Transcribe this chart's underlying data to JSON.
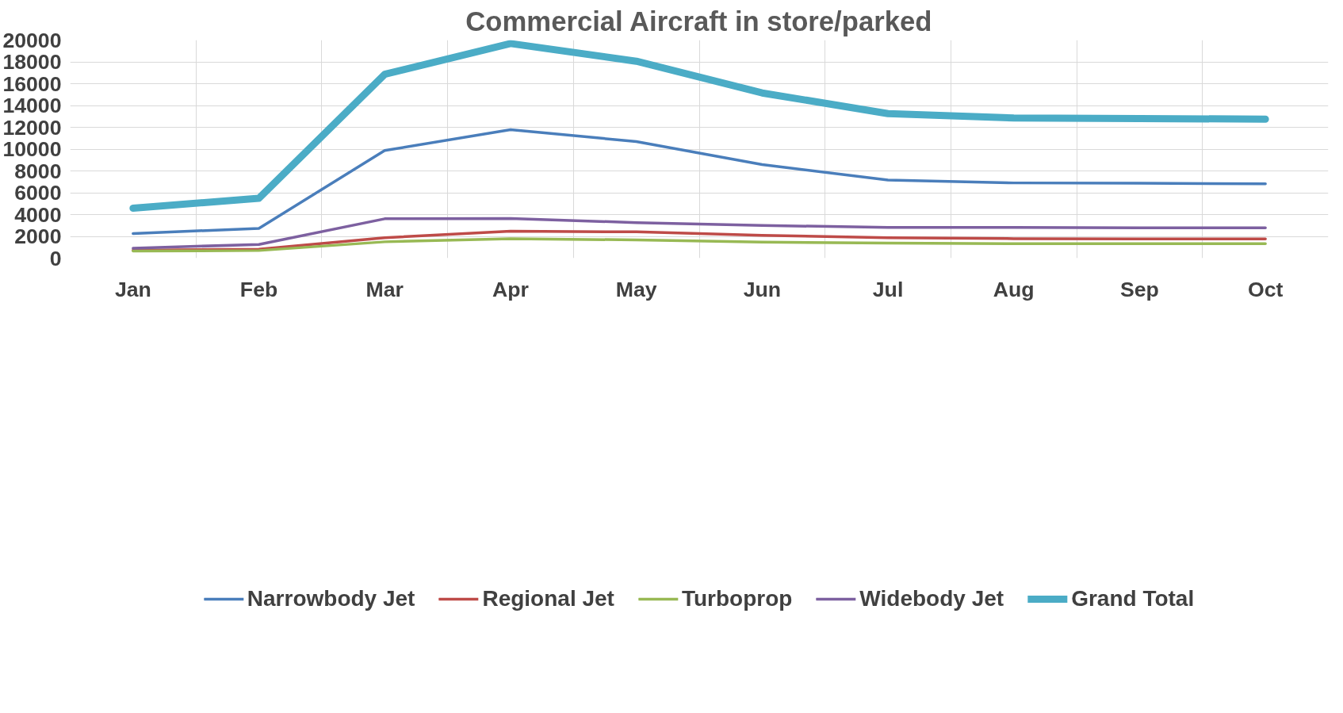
{
  "chart_data": {
    "type": "line",
    "title": "Commercial Aircraft in store/parked",
    "categories": [
      "Jan",
      "Feb",
      "Mar",
      "Apr",
      "May",
      "Jun",
      "Jul",
      "Aug",
      "Sep",
      "Oct"
    ],
    "series": [
      {
        "name": "Narrowbody Jet",
        "color": "#4a7ebb",
        "values": [
          2260,
          2730,
          9870,
          11780,
          10690,
          8580,
          7170,
          6900,
          6870,
          6810
        ]
      },
      {
        "name": "Regional Jet",
        "color": "#be4b48",
        "values": [
          730,
          820,
          1880,
          2470,
          2410,
          2090,
          1880,
          1790,
          1760,
          1760
        ]
      },
      {
        "name": "Turboprop",
        "color": "#98b954",
        "values": [
          650,
          700,
          1500,
          1790,
          1670,
          1470,
          1380,
          1320,
          1320,
          1320
        ]
      },
      {
        "name": "Widebody Jet",
        "color": "#7d60a0",
        "values": [
          910,
          1260,
          3610,
          3640,
          3260,
          3000,
          2820,
          2820,
          2790,
          2790
        ]
      },
      {
        "name": "Grand Total",
        "color": "#4bacc6",
        "values": [
          4580,
          5490,
          16860,
          19680,
          18060,
          15150,
          13250,
          12860,
          12800,
          12750
        ]
      }
    ],
    "ylim": [
      0,
      20000
    ],
    "yticks": [
      0,
      2000,
      4000,
      6000,
      8000,
      10000,
      12000,
      14000,
      16000,
      18000,
      20000
    ],
    "grid": true,
    "legend": "bottom",
    "marker": "none",
    "line_style": "solid"
  }
}
